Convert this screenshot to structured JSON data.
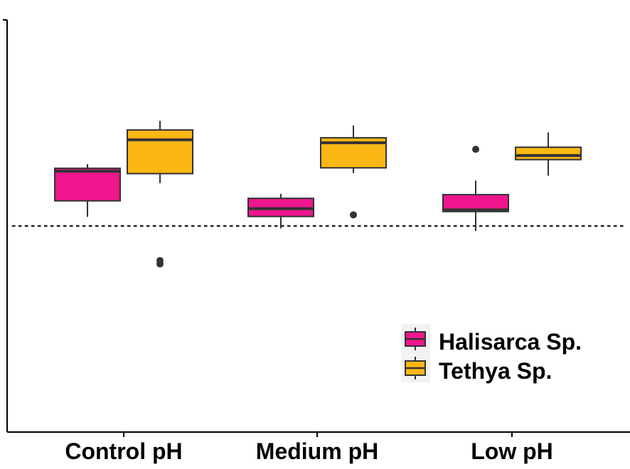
{
  "chart_data": {
    "type": "boxplot",
    "title": "",
    "xlabel": "",
    "ylabel": "",
    "ylim": [
      0,
      1
    ],
    "y_ticks_labeled": false,
    "categories": [
      "Control pH",
      "Medium pH",
      "Low pH"
    ],
    "reference_line": {
      "y": 0.5,
      "style": "dotted"
    },
    "series": [
      {
        "name": "Halisarca Sp.",
        "color": "#F0168D",
        "boxes": [
          {
            "whisker_low": 0.522,
            "q1": 0.561,
            "median": 0.633,
            "q3": 0.64,
            "whisker_high": 0.65,
            "outliers": []
          },
          {
            "whisker_low": 0.494,
            "q1": 0.523,
            "median": 0.542,
            "q3": 0.567,
            "whisker_high": 0.578,
            "outliers": []
          },
          {
            "whisker_low": 0.488,
            "q1": 0.535,
            "median": 0.539,
            "q3": 0.576,
            "whisker_high": 0.61,
            "outliers": [
              0.686
            ]
          }
        ]
      },
      {
        "name": "Tethya Sp.",
        "color": "#FBB713",
        "boxes": [
          {
            "whisker_low": 0.604,
            "q1": 0.627,
            "median": 0.709,
            "q3": 0.733,
            "whisker_high": 0.755,
            "outliers": [
              0.408,
              0.416
            ]
          },
          {
            "whisker_low": 0.628,
            "q1": 0.641,
            "median": 0.702,
            "q3": 0.714,
            "whisker_high": 0.744,
            "outliers": [
              0.527
            ]
          },
          {
            "whisker_low": 0.622,
            "q1": 0.661,
            "median": 0.671,
            "q3": 0.691,
            "whisker_high": 0.727,
            "outliers": []
          }
        ]
      }
    ],
    "legend": {
      "position": "bottom-right",
      "entries": [
        "Halisarca Sp.",
        "Tethya Sp."
      ]
    }
  }
}
